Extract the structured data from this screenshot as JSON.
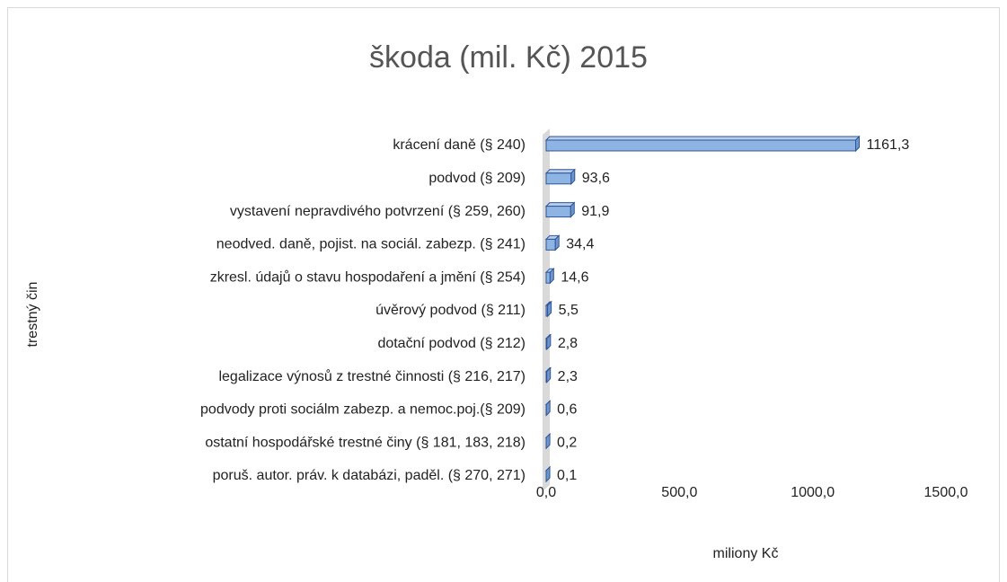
{
  "chart_data": {
    "type": "bar",
    "orientation": "horizontal",
    "title": "škoda (mil. Kč) 2015",
    "x_label": "miliony Kč",
    "y_label": "trestný čin",
    "categories": [
      "krácení daně (§ 240)",
      "podvod (§ 209)",
      "vystavení nepravdivého potvrzení (§ 259, 260)",
      "neodved. daně, pojist. na sociál. zabezp. (§ 241)",
      "zkresl. údajů o stavu hospodaření a jmění (§ 254)",
      "úvěrový podvod (§ 211)",
      "dotační podvod (§ 212)",
      "legalizace výnosů z trestné činnosti (§ 216, 217)",
      "podvody proti sociálm zabezp. a nemoc.poj.(§ 209)",
      "ostatní hospodářské trestné činy (§ 181, 183, 218)",
      "poruš. autor. práv. k databázi, paděl. (§ 270, 271)"
    ],
    "values": [
      1161.3,
      93.6,
      91.9,
      34.4,
      14.6,
      5.5,
      2.8,
      2.3,
      0.6,
      0.2,
      0.1
    ],
    "value_labels": [
      "1161,3",
      "93,6",
      "91,9",
      "34,4",
      "14,6",
      "5,5",
      "2,8",
      "2,3",
      "0,6",
      "0,2",
      "0,1"
    ],
    "color": "#8eb4e3",
    "xlim": [
      0,
      1500
    ],
    "xticks": [
      {
        "value": 0,
        "label": "0,0"
      },
      {
        "value": 500,
        "label": "500,0"
      },
      {
        "value": 1000,
        "label": "1000,0"
      },
      {
        "value": 1500,
        "label": "1500,0"
      }
    ],
    "grid": false
  }
}
